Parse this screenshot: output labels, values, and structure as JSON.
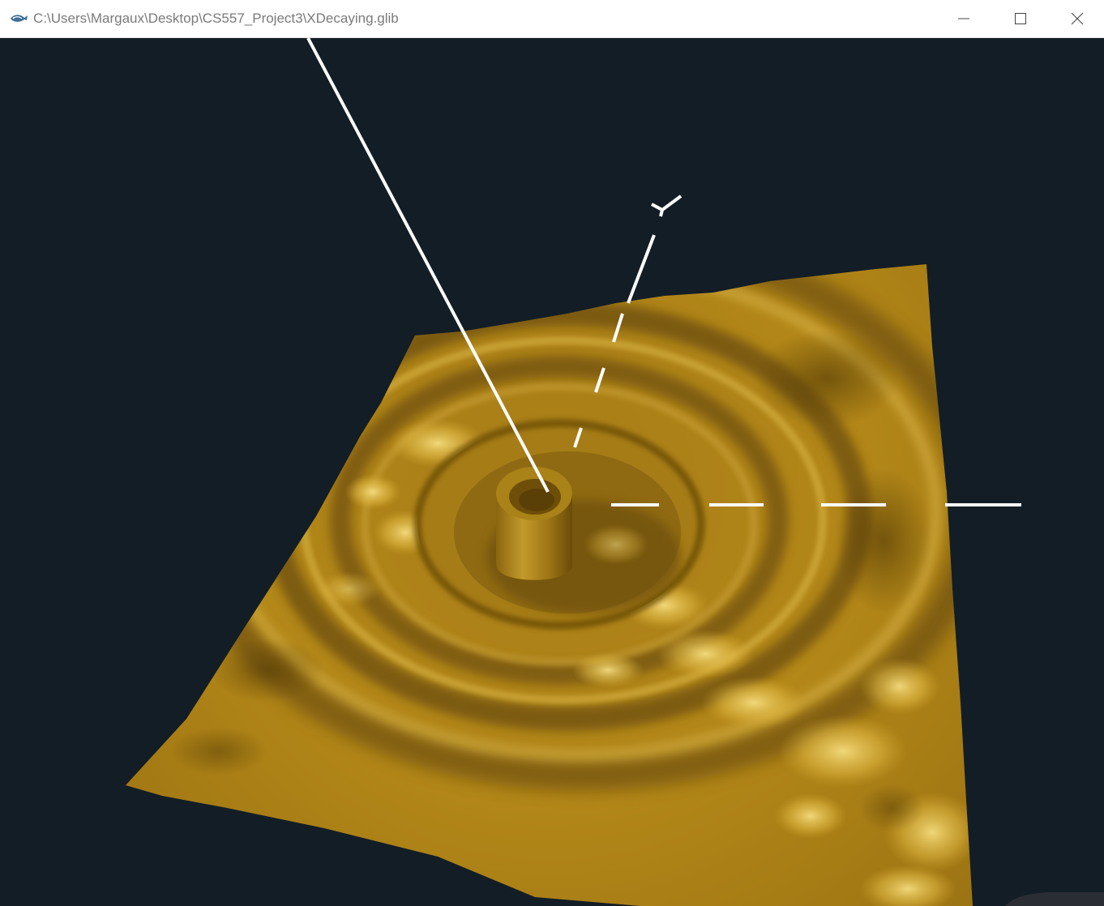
{
  "window": {
    "title": "C:\\Users\\Margaux\\Desktop\\CS557_Project3\\XDecaying.glib",
    "app_icon": "glman-fish-icon",
    "controls": {
      "minimize_icon": "minimize-icon",
      "maximize_icon": "maximize-icon",
      "close_icon": "close-icon"
    }
  },
  "viewport": {
    "background_color": "#131d25",
    "surface_color": "#b58a1c",
    "surface_highlight": "#f2d36a",
    "surface_shadow": "#5e4306",
    "axis_color": "#ffffff",
    "axes": {
      "y_label": "Y"
    }
  }
}
